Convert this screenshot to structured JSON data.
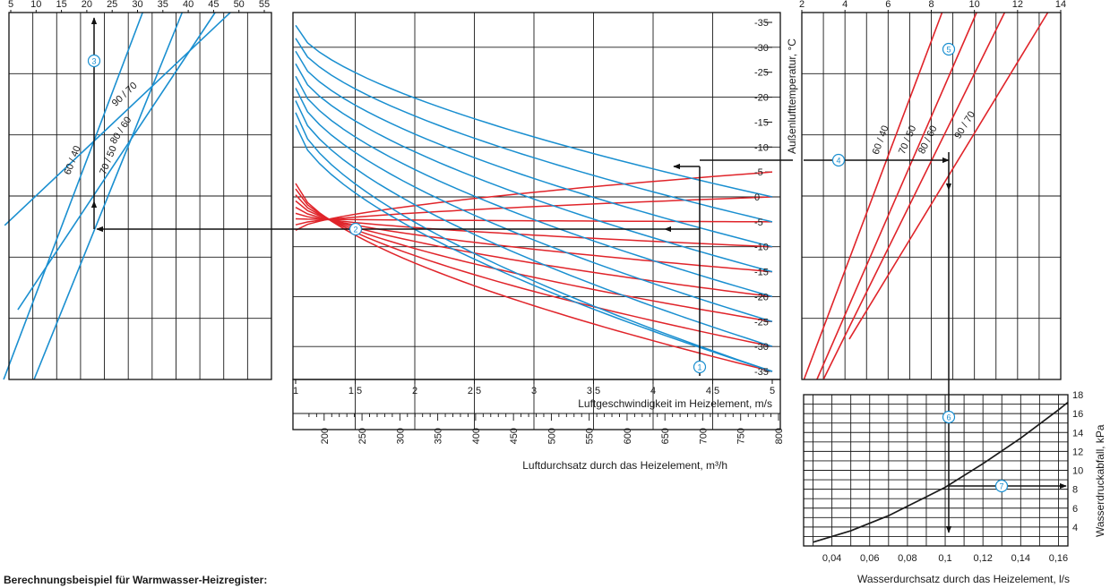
{
  "chart_data": [
    {
      "id": "left",
      "type": "line",
      "xlabel": "",
      "ylabel": "",
      "x_ticks": [
        "5",
        "10",
        "15",
        "20",
        "25",
        "30",
        "35",
        "40",
        "45",
        "50",
        "55"
      ],
      "xlim": [
        5,
        55
      ],
      "series_color": "#1a8fd0",
      "series": [
        {
          "name": "60 / 40",
          "x": [
            3.6,
            31.0
          ],
          "y": [
            0,
            1
          ]
        },
        {
          "name": "70 / 50",
          "x": [
            9.6,
            38.8
          ],
          "y": [
            0,
            1
          ]
        },
        {
          "name": "80 / 60",
          "x": [
            6.4,
            45.3
          ],
          "y": [
            0.19,
            1
          ]
        },
        {
          "name": "90 / 70",
          "x": [
            3.8,
            48.3
          ],
          "y": [
            0.42,
            1
          ]
        }
      ]
    },
    {
      "id": "center",
      "type": "line",
      "xlabel": "Luftgeschwindigkeit im Heizelement, m/s",
      "x2label": "Luftdurchsatz durch das Heizelement, m³/h",
      "x_ticks": [
        "1",
        "1,5",
        "2",
        "2,5",
        "3",
        "3,5",
        "4",
        "4,5",
        "5"
      ],
      "xlim": [
        1,
        5
      ],
      "x2_ticks": [
        "200",
        "250",
        "300",
        "350",
        "400",
        "450",
        "500",
        "550",
        "600",
        "650",
        "700",
        "750",
        "800"
      ],
      "x2lim": [
        160,
        800
      ],
      "right_ticks": [
        "-35",
        "-30",
        "-25",
        "-20",
        "-15",
        "-10",
        "-5",
        "0",
        "-5",
        "-10",
        "-15",
        "-20",
        "-25",
        "-30",
        "-35"
      ],
      "ylim": [
        -35,
        35
      ],
      "red_color": "#e0242a",
      "blue_color": "#1a8fd0",
      "red_curves": [
        {
          "end": -35,
          "start_y": 2.7
        },
        {
          "end": -30,
          "start_y": 1.6
        },
        {
          "end": -25,
          "start_y": 0.4
        },
        {
          "end": -20,
          "start_y": -0.8
        },
        {
          "end": -15,
          "start_y": -2.1
        },
        {
          "end": -10,
          "start_y": -3.3
        },
        {
          "end": -5,
          "start_y": -4.4
        },
        {
          "end": 0,
          "start_y": -5.6
        },
        {
          "end": 5,
          "start_y": -6.7
        }
      ],
      "blue_curves": [
        {
          "start_y": 34.4,
          "end": 0
        },
        {
          "start_y": 31.8,
          "end": -5
        },
        {
          "start_y": 29.2,
          "end": -10
        },
        {
          "start_y": 26.7,
          "end": -15
        },
        {
          "start_y": 24.2,
          "end": -20
        },
        {
          "start_y": 21.8,
          "end": -25
        },
        {
          "start_y": 19.3,
          "end": -30
        },
        {
          "start_y": 16.9,
          "end": -35
        },
        {
          "start_y": 14.4,
          "end": -35
        }
      ]
    },
    {
      "id": "right",
      "type": "line",
      "x_ticks": [
        "2",
        "4",
        "6",
        "8",
        "10",
        "12",
        "14"
      ],
      "xlim": [
        2,
        14
      ],
      "ylabel": "Außenlufttemperatur, °C",
      "series_color": "#e0242a",
      "series": [
        {
          "name": "60 / 40",
          "x": [
            2.1,
            8.5
          ],
          "y": [
            0,
            1
          ]
        },
        {
          "name": "70 / 50",
          "x": [
            2.7,
            10.1
          ],
          "y": [
            0,
            1
          ]
        },
        {
          "name": "80 / 60",
          "x": [
            3.0,
            11.4
          ],
          "y": [
            0,
            1
          ]
        },
        {
          "name": "90 / 70",
          "x": [
            4.2,
            13.4
          ],
          "y": [
            0.11,
            1
          ]
        }
      ]
    },
    {
      "id": "bottom-right",
      "type": "line",
      "xlabel": "Wasserdurchsatz durch das Heizelement, l/s",
      "ylabel": "Wasserdruckabfall, kPa",
      "x_ticks": [
        "0,04",
        "0,06",
        "0,08",
        "0,1",
        "0,12",
        "0,14",
        "0,16"
      ],
      "xlim": [
        0.025,
        0.165
      ],
      "y_ticks": [
        "4",
        "6",
        "8",
        "10",
        "12",
        "14",
        "16",
        "18"
      ],
      "ylim": [
        2,
        18
      ],
      "series_color": "#1a1a1a",
      "series": [
        {
          "x": [
            0.03,
            0.05,
            0.07,
            0.09,
            0.1,
            0.12,
            0.14,
            0.16,
            0.165
          ],
          "y": [
            2.4,
            3.6,
            5.2,
            7.2,
            8.2,
            10.7,
            13.4,
            16.4,
            17.2
          ]
        }
      ]
    }
  ],
  "markers": [
    "1",
    "2",
    "3",
    "4",
    "5",
    "6",
    "7"
  ],
  "footer": {
    "title": "Berechnungsbeispiel für Warmwasser-Heizregister:"
  }
}
